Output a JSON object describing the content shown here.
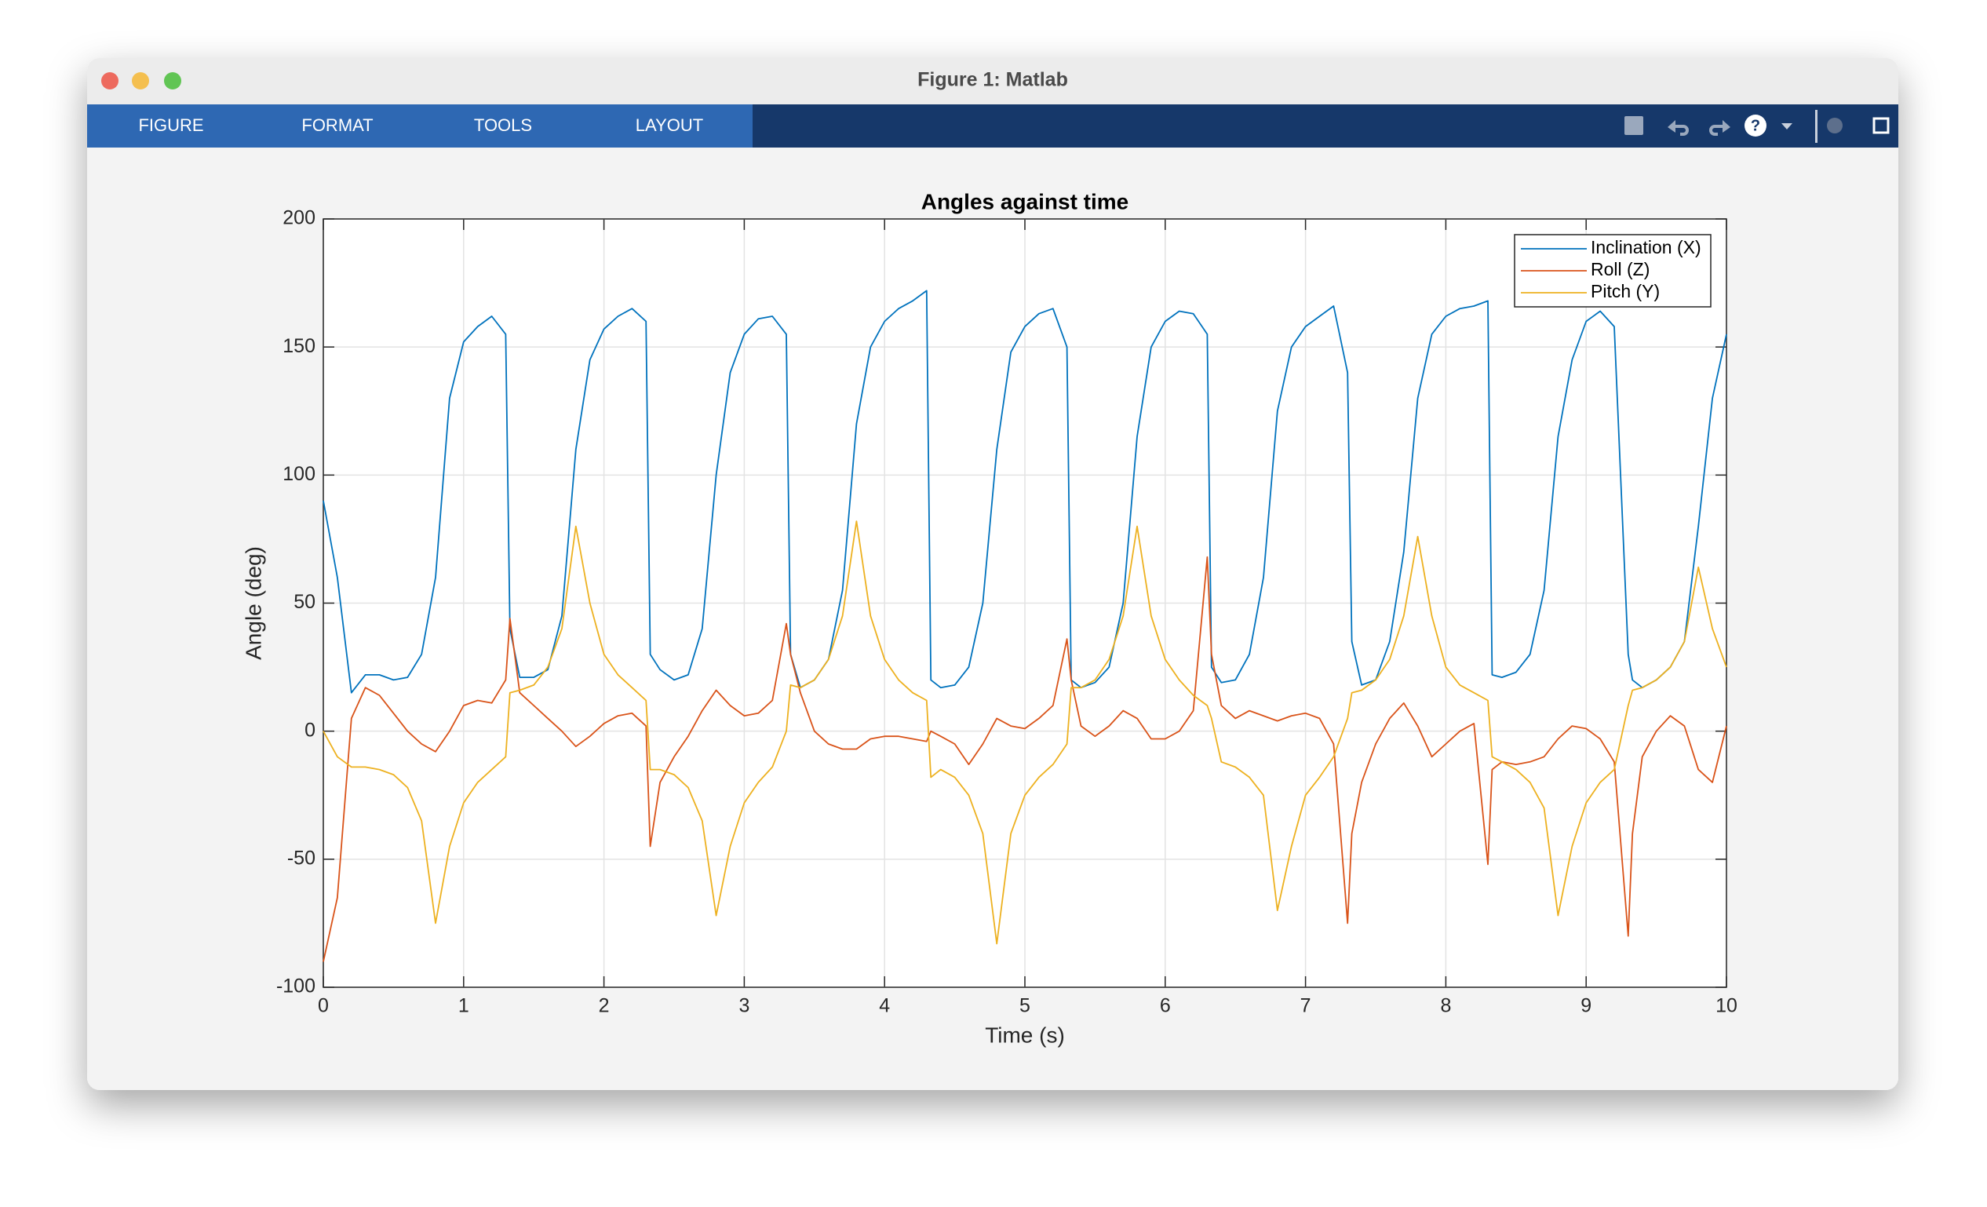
{
  "window": {
    "title": "Figure 1: Matlab"
  },
  "toolbar": {
    "tabs": [
      "FIGURE",
      "FORMAT",
      "TOOLS",
      "LAYOUT"
    ]
  },
  "chart_data": {
    "type": "line",
    "title": "Angles against time",
    "x_label": "Time (s)",
    "y_label": "Angle (deg)",
    "x": [
      0,
      0.1,
      0.2,
      0.3,
      0.4,
      0.5,
      0.6,
      0.7,
      0.8,
      0.9,
      1.0,
      1.1,
      1.2,
      1.3,
      1.33,
      1.4,
      1.5,
      1.6,
      1.7,
      1.8,
      1.9,
      2.0,
      2.1,
      2.2,
      2.3,
      2.33,
      2.4,
      2.5,
      2.6,
      2.7,
      2.8,
      2.9,
      3.0,
      3.1,
      3.2,
      3.3,
      3.33,
      3.4,
      3.5,
      3.6,
      3.7,
      3.8,
      3.9,
      4.0,
      4.1,
      4.2,
      4.3,
      4.33,
      4.4,
      4.5,
      4.6,
      4.7,
      4.8,
      4.9,
      5.0,
      5.1,
      5.2,
      5.3,
      5.33,
      5.4,
      5.5,
      5.6,
      5.7,
      5.8,
      5.9,
      6.0,
      6.1,
      6.2,
      6.3,
      6.33,
      6.4,
      6.5,
      6.6,
      6.7,
      6.8,
      6.9,
      7.0,
      7.1,
      7.2,
      7.3,
      7.33,
      7.4,
      7.5,
      7.6,
      7.7,
      7.8,
      7.9,
      8.0,
      8.1,
      8.2,
      8.3,
      8.33,
      8.4,
      8.5,
      8.6,
      8.7,
      8.8,
      8.9,
      9.0,
      9.1,
      9.2,
      9.3,
      9.33,
      9.4,
      9.5,
      9.6,
      9.7,
      9.8,
      9.9,
      10.0
    ],
    "series": [
      {
        "name": "Inclination (X)",
        "color": "#0072bd",
        "values": [
          90,
          60,
          15,
          22,
          22,
          20,
          21,
          30,
          60,
          130,
          152,
          158,
          162,
          155,
          40,
          21,
          21,
          24,
          45,
          110,
          145,
          157,
          162,
          165,
          160,
          30,
          24,
          20,
          22,
          40,
          100,
          140,
          155,
          161,
          162,
          155,
          30,
          17,
          20,
          28,
          55,
          120,
          150,
          160,
          165,
          168,
          172,
          20,
          17,
          18,
          25,
          50,
          110,
          148,
          158,
          163,
          165,
          150,
          20,
          17,
          19,
          25,
          50,
          115,
          150,
          160,
          164,
          163,
          155,
          25,
          19,
          20,
          30,
          60,
          125,
          150,
          158,
          162,
          166,
          140,
          35,
          18,
          20,
          35,
          70,
          130,
          155,
          162,
          165,
          166,
          168,
          22,
          21,
          23,
          30,
          55,
          115,
          145,
          160,
          164,
          158,
          30,
          20,
          17,
          20,
          25,
          35,
          80,
          130,
          155
        ]
      },
      {
        "name": "Roll (Z)",
        "color": "#d95319",
        "values": [
          -90,
          -65,
          5,
          17,
          14,
          7,
          0,
          -5,
          -8,
          0,
          10,
          12,
          11,
          20,
          44,
          15,
          10,
          5,
          0,
          -6,
          -2,
          3,
          6,
          7,
          2,
          -45,
          -20,
          -10,
          -2,
          8,
          16,
          10,
          6,
          7,
          12,
          42,
          30,
          15,
          0,
          -5,
          -7,
          -7,
          -3,
          -2,
          -2,
          -3,
          -4,
          0,
          -2,
          -5,
          -13,
          -5,
          5,
          2,
          1,
          5,
          10,
          36,
          20,
          2,
          -2,
          2,
          8,
          5,
          -3,
          -3,
          0,
          8,
          68,
          30,
          10,
          5,
          8,
          6,
          4,
          6,
          7,
          5,
          -5,
          -75,
          -40,
          -20,
          -5,
          5,
          11,
          2,
          -10,
          -5,
          0,
          3,
          -52,
          -15,
          -12,
          -13,
          -12,
          -10,
          -3,
          2,
          1,
          -3,
          -12,
          -80,
          -40,
          -10,
          0,
          6,
          2,
          -15,
          -20,
          2
        ]
      },
      {
        "name": "Pitch (Y)",
        "color": "#edb120",
        "values": [
          0,
          -10,
          -14,
          -14,
          -15,
          -17,
          -22,
          -35,
          -75,
          -45,
          -28,
          -20,
          -15,
          -10,
          15,
          16,
          18,
          25,
          40,
          80,
          50,
          30,
          22,
          17,
          12,
          -15,
          -15,
          -17,
          -22,
          -35,
          -72,
          -45,
          -28,
          -20,
          -14,
          0,
          18,
          17,
          20,
          28,
          45,
          82,
          45,
          28,
          20,
          15,
          12,
          -18,
          -15,
          -18,
          -25,
          -40,
          -83,
          -40,
          -25,
          -18,
          -13,
          -5,
          17,
          17,
          20,
          28,
          45,
          80,
          45,
          28,
          20,
          14,
          10,
          5,
          -12,
          -14,
          -18,
          -25,
          -70,
          -45,
          -25,
          -18,
          -10,
          5,
          15,
          16,
          20,
          28,
          45,
          76,
          45,
          25,
          18,
          15,
          12,
          -10,
          -12,
          -15,
          -20,
          -30,
          -72,
          -45,
          -28,
          -20,
          -15,
          10,
          16,
          17,
          20,
          25,
          35,
          64,
          40,
          25
        ]
      }
    ],
    "xlim": [
      0,
      10
    ],
    "xticks": [
      0,
      1,
      2,
      3,
      4,
      5,
      6,
      7,
      8,
      9,
      10
    ],
    "ylim": [
      -100,
      200
    ],
    "yticks": [
      -100,
      -50,
      0,
      50,
      100,
      150,
      200
    ],
    "grid": true,
    "legend": "upper right"
  }
}
